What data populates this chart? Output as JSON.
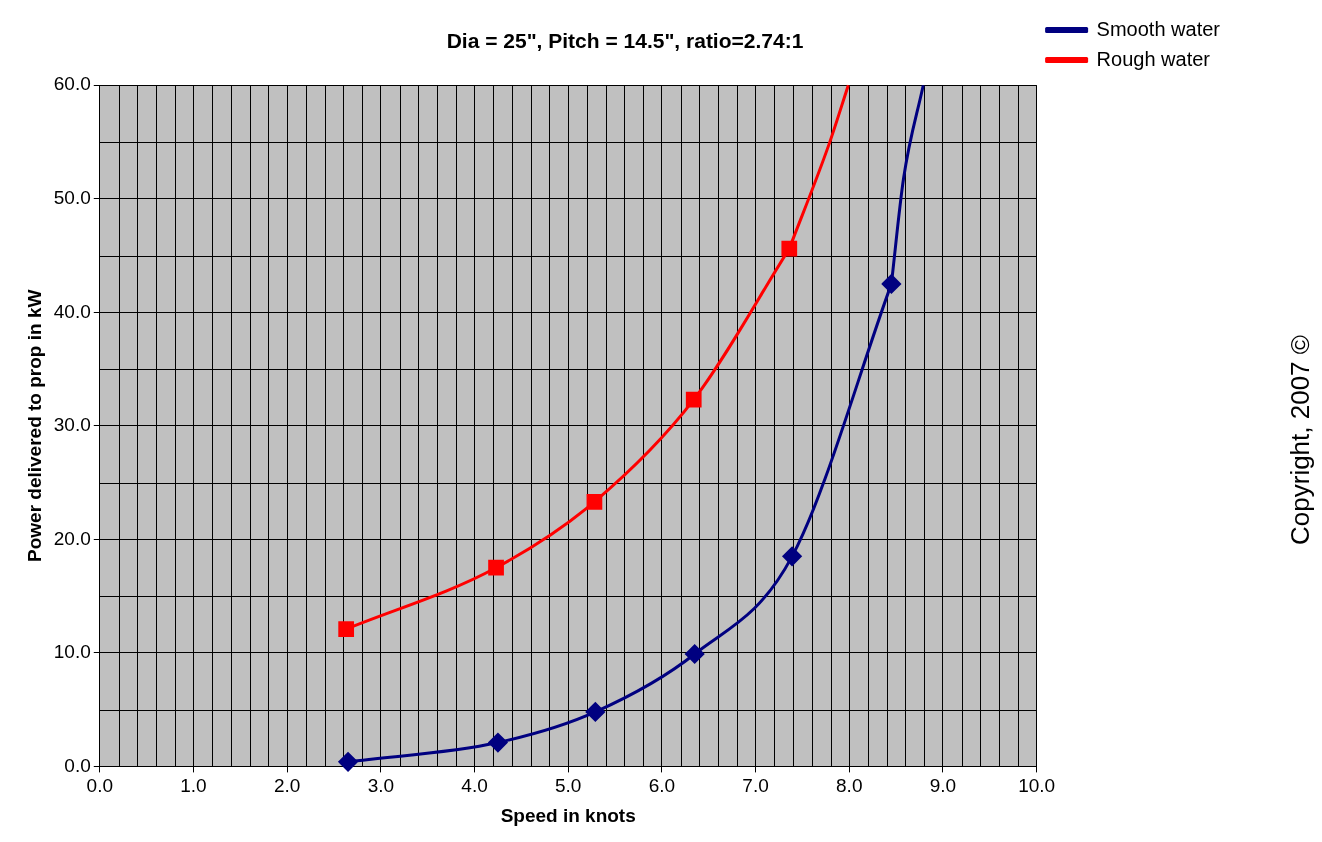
{
  "chart_data": {
    "type": "line",
    "title": "Dia = 25\", Pitch = 14.5\", ratio=2.74:1",
    "xlabel": "Speed in knots",
    "ylabel": "Power delivered to prop in kW",
    "xlim": [
      0,
      10
    ],
    "xticks": [
      {
        "value": 0,
        "label": "0.0"
      },
      {
        "value": 1,
        "label": "1.0"
      },
      {
        "value": 2,
        "label": "2.0"
      },
      {
        "value": 3,
        "label": "3.0"
      },
      {
        "value": 4,
        "label": "4.0"
      },
      {
        "value": 5,
        "label": "5.0"
      },
      {
        "value": 6,
        "label": "6.0"
      },
      {
        "value": 7,
        "label": "7.0"
      },
      {
        "value": 8,
        "label": "8.0"
      },
      {
        "value": 9,
        "label": "9.0"
      },
      {
        "value": 10,
        "label": "10.0"
      }
    ],
    "ylim": [
      0,
      60
    ],
    "yticks": [
      {
        "value": 0,
        "label": "0.0"
      },
      {
        "value": 10,
        "label": "10.0"
      },
      {
        "value": 20,
        "label": "20.0"
      },
      {
        "value": 30,
        "label": "30.0"
      },
      {
        "value": 40,
        "label": "40.0"
      },
      {
        "value": 50,
        "label": "50.0"
      },
      {
        "value": 60,
        "label": "60.0"
      }
    ],
    "grid": true,
    "legend": "top right",
    "line_style": "solid",
    "annotations": [
      "Copyright, 2007 ©"
    ],
    "series": [
      {
        "name": "Smooth water",
        "color": "#000080",
        "marker": "diamond",
        "x": [
          2.65,
          4.25,
          5.29,
          6.35,
          7.39,
          8.45
        ],
        "values": [
          0.4,
          2.1,
          4.8,
          9.9,
          18.5,
          42.5
        ]
      },
      {
        "name": "Rough water",
        "color": "#ff0000",
        "marker": "square",
        "x": [
          2.63,
          4.23,
          5.28,
          6.34,
          7.36
        ],
        "values": [
          12.1,
          17.5,
          23.3,
          32.3,
          45.6
        ]
      },
      {
        "color": "#000080",
        "marker": "none",
        "x": [
          8.45,
          8.58,
          8.79
        ],
        "values": [
          42.5,
          51.8,
          60
        ]
      },
      {
        "color": "#ff0000",
        "marker": "none",
        "x": [
          7.36,
          7.78,
          7.99
        ],
        "values": [
          45.6,
          54.7,
          60
        ]
      }
    ]
  }
}
